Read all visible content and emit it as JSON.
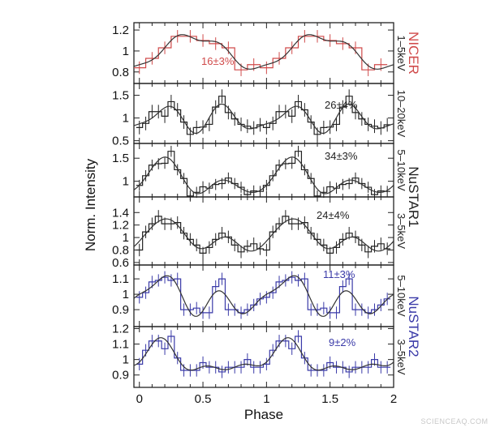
{
  "chart_data": {
    "type": "line",
    "xlabel": "Phase",
    "ylabel": "Norm. Intensity",
    "xlim": [
      -0.043,
      2
    ],
    "x_ticks": [
      0,
      0.5,
      1,
      1.5,
      2
    ],
    "x_tick_labels": [
      "0",
      "0.5",
      "1",
      "1.5",
      "2"
    ],
    "cycles_shown": 2,
    "grid": false,
    "panels": [
      {
        "instrument": "NICER",
        "band": "1–5keV",
        "color": "#d04a4a",
        "pulsed_fraction": "16±3%",
        "ylim": [
          0.69,
          1.27
        ],
        "y_ticks": [
          0.8,
          1,
          1.2
        ],
        "y_tick_labels": [
          "0.8",
          "1",
          "1.2"
        ],
        "bin_width": 0.1,
        "error": 0.06,
        "values": [
          0.84,
          0.93,
          1.03,
          1.14,
          1.14,
          1.1,
          1.07,
          1.03,
          0.82,
          0.87
        ]
      },
      {
        "instrument": "",
        "band": "10–20keV",
        "color": "#222222",
        "pulsed_fraction": "26±4%",
        "ylim": [
          0.44,
          1.76
        ],
        "y_ticks": [
          0.5,
          1,
          1.5
        ],
        "y_tick_labels": [
          "0.5",
          "1",
          "1.5"
        ],
        "bin_width": 0.05,
        "error": 0.15,
        "values": [
          0.79,
          0.88,
          1.14,
          1.14,
          1.04,
          1.36,
          1.18,
          0.91,
          0.64,
          0.79,
          0.8,
          0.86,
          1.24,
          1.48,
          1.12,
          0.98,
          0.86,
          0.82,
          0.78,
          0.85
        ]
      },
      {
        "instrument": "",
        "band": "5–10keV",
        "color": "#222222",
        "pulsed_fraction": "34±3%",
        "ylim": [
          0.66,
          1.82
        ],
        "y_ticks": [
          1,
          1.5
        ],
        "y_tick_labels": [
          "1",
          "1.5"
        ],
        "bin_width": 0.05,
        "error": 0.12,
        "values": [
          0.91,
          1.12,
          1.35,
          1.38,
          1.39,
          1.65,
          1.25,
          1.06,
          0.68,
          0.76,
          0.88,
          0.85,
          0.93,
          0.95,
          1.07,
          0.95,
          0.87,
          0.71,
          0.79,
          0.78
        ]
      },
      {
        "instrument": "NuSTAR1",
        "band": "3–5keV",
        "color": "#222222",
        "pulsed_fraction": "24±4%",
        "ylim": [
          0.56,
          1.65
        ],
        "y_ticks": [
          0.6,
          0.8,
          1,
          1.2,
          1.4
        ],
        "y_tick_labels": [
          "0.6",
          "0.8",
          "1",
          "1.2",
          "1.4"
        ],
        "bin_width": 0.05,
        "error": 0.1,
        "values": [
          0.8,
          1.09,
          1.22,
          1.34,
          1.22,
          1.22,
          1.24,
          1.07,
          0.97,
          0.88,
          0.75,
          0.84,
          0.97,
          1.07,
          1.01,
          0.88,
          0.77,
          0.86,
          0.9,
          0.82
        ]
      },
      {
        "instrument": "",
        "band": "5–10keV",
        "color": "#3a3aa8",
        "pulsed_fraction": "11±3%",
        "ylim": [
          0.79,
          1.19
        ],
        "y_ticks": [
          0.9,
          1,
          1.1
        ],
        "y_tick_labels": [
          "0.9",
          "1",
          "1.1"
        ],
        "bin_width": 0.05,
        "error": 0.04,
        "values": [
          0.98,
          1.01,
          1.08,
          1.09,
          1.11,
          1.09,
          1.1,
          0.9,
          0.9,
          0.91,
          0.88,
          0.88,
          1.05,
          1.1,
          0.9,
          0.9,
          0.88,
          0.9,
          0.93,
          0.97
        ]
      },
      {
        "instrument": "NuSTAR2",
        "band": "3–5keV",
        "color": "#3a3aa8",
        "pulsed_fraction": "9±2%",
        "ylim": [
          0.82,
          1.213
        ],
        "y_ticks": [
          0.9,
          1,
          1.1,
          1.2
        ],
        "y_tick_labels": [
          "0.9",
          "1",
          "1.1",
          "1.2"
        ],
        "bin_width": 0.05,
        "error": 0.04,
        "values": [
          0.97,
          1.06,
          1.12,
          1.12,
          1.07,
          1.15,
          1.01,
          0.93,
          0.93,
          0.93,
          0.98,
          0.95,
          0.95,
          0.92,
          0.95,
          0.95,
          0.95,
          1.0,
          0.95,
          0.95
        ]
      }
    ],
    "instrument_labels": [
      {
        "text": "NICER",
        "color": "#d04a4a"
      },
      {
        "text": "NuSTAR1",
        "color": "#222222"
      },
      {
        "text": "NuSTAR2",
        "color": "#3a3aa8"
      }
    ]
  },
  "watermark": "SCIENCEAQ.COM"
}
